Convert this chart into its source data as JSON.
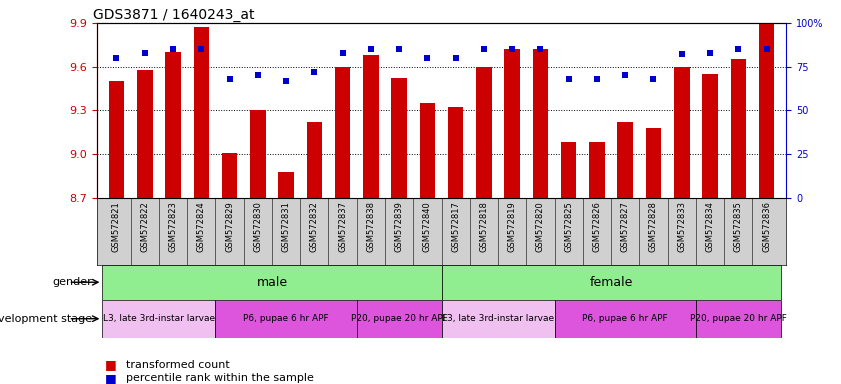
{
  "title": "GDS3871 / 1640243_at",
  "samples": [
    "GSM572821",
    "GSM572822",
    "GSM572823",
    "GSM572824",
    "GSM572829",
    "GSM572830",
    "GSM572831",
    "GSM572832",
    "GSM572837",
    "GSM572838",
    "GSM572839",
    "GSM572840",
    "GSM572817",
    "GSM572818",
    "GSM572819",
    "GSM572820",
    "GSM572825",
    "GSM572826",
    "GSM572827",
    "GSM572828",
    "GSM572833",
    "GSM572834",
    "GSM572835",
    "GSM572836"
  ],
  "transformed_count": [
    9.5,
    9.58,
    9.7,
    9.87,
    9.01,
    9.3,
    8.88,
    9.22,
    9.6,
    9.68,
    9.52,
    9.35,
    9.32,
    9.6,
    9.72,
    9.72,
    9.08,
    9.08,
    9.22,
    9.18,
    9.6,
    9.55,
    9.65,
    9.9
  ],
  "percentile_rank": [
    80,
    83,
    85,
    85,
    68,
    70,
    67,
    72,
    83,
    85,
    85,
    80,
    80,
    85,
    85,
    85,
    68,
    68,
    70,
    68,
    82,
    83,
    85,
    85
  ],
  "ymin": 8.7,
  "ymax": 9.9,
  "yticks": [
    8.7,
    9.0,
    9.3,
    9.6,
    9.9
  ],
  "right_ytick_vals": [
    0,
    25,
    50,
    75,
    100
  ],
  "right_ytick_labels": [
    "0",
    "25",
    "50",
    "75",
    "100%"
  ],
  "bar_color": "#cc0000",
  "percentile_color": "#0000cc",
  "xtick_bg_color": "#d0d0d0",
  "gender_color": "#90ee90",
  "dev_light_color": "#f0c0f0",
  "dev_dark_color": "#dd55dd",
  "male_span": [
    0,
    11
  ],
  "female_span": [
    12,
    23
  ],
  "dev_blocks": [
    {
      "label": "L3, late 3rd-instar larvae",
      "start": 0,
      "end": 3,
      "light": true
    },
    {
      "label": "P6, pupae 6 hr APF",
      "start": 4,
      "end": 8,
      "light": false
    },
    {
      "label": "P20, pupae 20 hr APF",
      "start": 9,
      "end": 11,
      "light": false
    },
    {
      "label": "L3, late 3rd-instar larvae",
      "start": 12,
      "end": 15,
      "light": true
    },
    {
      "label": "P6, pupae 6 hr APF",
      "start": 16,
      "end": 20,
      "light": false
    },
    {
      "label": "P20, pupae 20 hr APF",
      "start": 21,
      "end": 23,
      "light": false
    }
  ]
}
